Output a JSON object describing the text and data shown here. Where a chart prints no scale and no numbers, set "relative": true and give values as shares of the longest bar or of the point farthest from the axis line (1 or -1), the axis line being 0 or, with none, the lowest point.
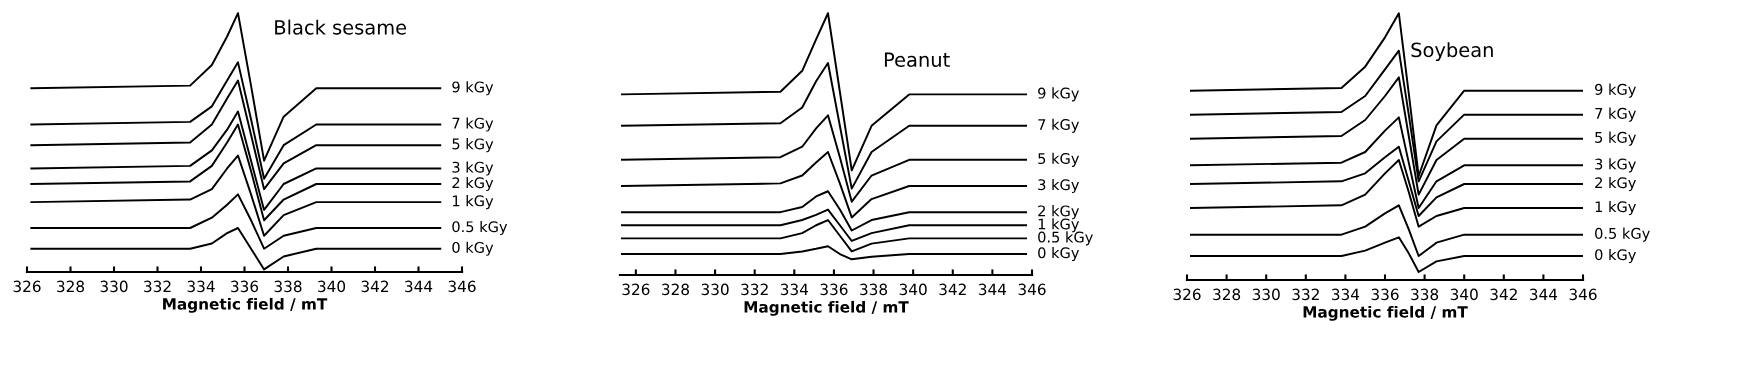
{
  "chart_data": [
    {
      "type": "line",
      "title": "Black sesame",
      "xlabel": "Magnetic field / mT",
      "relative": true,
      "legend": false,
      "grid": false,
      "xlim": [
        326,
        346
      ],
      "xticks": [
        326,
        328,
        330,
        332,
        334,
        336,
        338,
        340,
        342,
        344,
        346
      ],
      "tick_labels": "x",
      "x": [
        326.2,
        333.5,
        334.5,
        335.2,
        335.7,
        336.3,
        336.9,
        337.8,
        339.3,
        345.0
      ],
      "series": [
        {
          "name": "9 kGy",
          "color": "#000000",
          "values": [
            0.71,
            0.72,
            0.8,
            0.91,
            1.0,
            0.72,
            0.43,
            0.6,
            0.71,
            0.71
          ]
        },
        {
          "name": "7 kGy",
          "color": "#000000",
          "values": [
            0.57,
            0.58,
            0.64,
            0.74,
            0.81,
            0.59,
            0.36,
            0.49,
            0.57,
            0.57
          ]
        },
        {
          "name": "5 kGy",
          "color": "#000000",
          "values": [
            0.49,
            0.5,
            0.57,
            0.67,
            0.74,
            0.53,
            0.32,
            0.42,
            0.49,
            0.49
          ]
        },
        {
          "name": "3 kGy",
          "color": "#000000",
          "values": [
            0.4,
            0.41,
            0.47,
            0.55,
            0.62,
            0.43,
            0.24,
            0.34,
            0.4,
            0.4
          ]
        },
        {
          "name": "2 kGy",
          "color": "#000000",
          "values": [
            0.34,
            0.35,
            0.41,
            0.5,
            0.57,
            0.39,
            0.2,
            0.28,
            0.34,
            0.34
          ]
        },
        {
          "name": "1 kGy",
          "color": "#000000",
          "values": [
            0.27,
            0.28,
            0.32,
            0.4,
            0.45,
            0.3,
            0.14,
            0.22,
            0.27,
            0.27
          ]
        },
        {
          "name": "0.5 kGy",
          "color": "#000000",
          "values": [
            0.17,
            0.17,
            0.21,
            0.26,
            0.3,
            0.2,
            0.09,
            0.14,
            0.17,
            0.17
          ]
        },
        {
          "name": "0 kGy",
          "color": "#000000",
          "values": [
            0.09,
            0.09,
            0.11,
            0.15,
            0.17,
            0.09,
            0.01,
            0.06,
            0.09,
            0.09
          ]
        }
      ]
    },
    {
      "type": "line",
      "title": "Peanut",
      "xlabel": "Magnetic field / mT",
      "relative": true,
      "legend": false,
      "grid": false,
      "xlim": [
        325.2,
        346
      ],
      "xticks": [
        326,
        328,
        330,
        332,
        334,
        336,
        338,
        340,
        342,
        344,
        346
      ],
      "tick_labels": "x",
      "x": [
        325.3,
        333.3,
        334.4,
        335.1,
        335.7,
        336.3,
        336.9,
        337.9,
        339.8,
        345.7
      ],
      "series": [
        {
          "name": "9 kGy",
          "color": "#000000",
          "values": [
            0.69,
            0.7,
            0.78,
            0.9,
            1.0,
            0.7,
            0.4,
            0.57,
            0.69,
            0.69
          ]
        },
        {
          "name": "7 kGy",
          "color": "#000000",
          "values": [
            0.57,
            0.58,
            0.64,
            0.74,
            0.81,
            0.57,
            0.33,
            0.47,
            0.57,
            0.57
          ]
        },
        {
          "name": "5 kGy",
          "color": "#000000",
          "values": [
            0.44,
            0.45,
            0.49,
            0.56,
            0.61,
            0.45,
            0.28,
            0.38,
            0.44,
            0.44
          ]
        },
        {
          "name": "3 kGy",
          "color": "#000000",
          "values": [
            0.34,
            0.35,
            0.38,
            0.43,
            0.47,
            0.35,
            0.22,
            0.29,
            0.34,
            0.34
          ]
        },
        {
          "name": "2 kGy",
          "color": "#000000",
          "values": [
            0.24,
            0.24,
            0.26,
            0.3,
            0.32,
            0.25,
            0.17,
            0.21,
            0.24,
            0.24
          ]
        },
        {
          "name": "1 kGy",
          "color": "#000000",
          "values": [
            0.19,
            0.19,
            0.21,
            0.23,
            0.25,
            0.19,
            0.13,
            0.16,
            0.19,
            0.19
          ]
        },
        {
          "name": "0.5 kGy",
          "color": "#000000",
          "values": [
            0.14,
            0.14,
            0.16,
            0.19,
            0.21,
            0.15,
            0.09,
            0.12,
            0.14,
            0.14
          ]
        },
        {
          "name": "0 kGy",
          "color": "#000000",
          "values": [
            0.08,
            0.08,
            0.09,
            0.1,
            0.11,
            0.08,
            0.06,
            0.07,
            0.08,
            0.08
          ]
        }
      ]
    },
    {
      "type": "line",
      "title": "Soybean",
      "xlabel": "Magnetic field / mT",
      "relative": true,
      "legend": false,
      "grid": false,
      "xlim": [
        326,
        346
      ],
      "xticks": [
        326,
        328,
        330,
        332,
        334,
        336,
        338,
        340,
        342,
        344,
        346
      ],
      "tick_labels": "x",
      "x": [
        326.2,
        333.8,
        335.0,
        336.0,
        336.7,
        337.2,
        337.7,
        338.6,
        340.0,
        346.0
      ],
      "series": [
        {
          "name": "9 kGy",
          "color": "#000000",
          "values": [
            0.71,
            0.72,
            0.8,
            0.91,
            1.0,
            0.7,
            0.39,
            0.58,
            0.71,
            0.71
          ]
        },
        {
          "name": "7 kGy",
          "color": "#000000",
          "values": [
            0.62,
            0.63,
            0.69,
            0.79,
            0.86,
            0.62,
            0.37,
            0.52,
            0.62,
            0.62
          ]
        },
        {
          "name": "5 kGy",
          "color": "#000000",
          "values": [
            0.53,
            0.54,
            0.6,
            0.69,
            0.76,
            0.54,
            0.32,
            0.45,
            0.53,
            0.53
          ]
        },
        {
          "name": "3 kGy",
          "color": "#000000",
          "values": [
            0.43,
            0.44,
            0.48,
            0.56,
            0.61,
            0.44,
            0.27,
            0.37,
            0.43,
            0.43
          ]
        },
        {
          "name": "2 kGy",
          "color": "#000000",
          "values": [
            0.36,
            0.37,
            0.4,
            0.46,
            0.5,
            0.37,
            0.24,
            0.31,
            0.36,
            0.36
          ]
        },
        {
          "name": "1 kGy",
          "color": "#000000",
          "values": [
            0.27,
            0.28,
            0.32,
            0.4,
            0.45,
            0.33,
            0.2,
            0.24,
            0.27,
            0.27
          ]
        },
        {
          "name": "0.5 kGy",
          "color": "#000000",
          "values": [
            0.17,
            0.17,
            0.2,
            0.25,
            0.28,
            0.19,
            0.09,
            0.14,
            0.17,
            0.17
          ]
        },
        {
          "name": "0 kGy",
          "color": "#000000",
          "values": [
            0.09,
            0.09,
            0.11,
            0.14,
            0.16,
            0.1,
            0.03,
            0.07,
            0.09,
            0.09
          ]
        }
      ]
    }
  ]
}
